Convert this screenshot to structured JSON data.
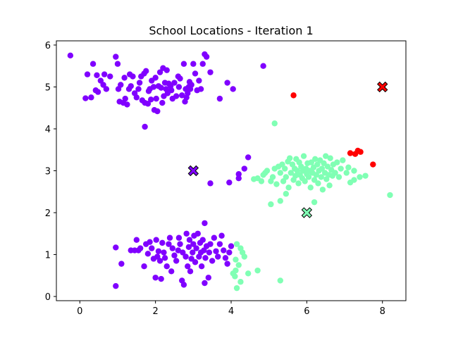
{
  "chart_data": {
    "type": "scatter",
    "title": "School Locations - Iteration 1",
    "xlabel": "",
    "ylabel": "",
    "xlim": [
      -0.62,
      8.62
    ],
    "ylim": [
      -0.1,
      6.1
    ],
    "xticks": [
      0,
      2,
      4,
      6,
      8
    ],
    "yticks": [
      0,
      1,
      2,
      3,
      4,
      5,
      6
    ],
    "grid": false,
    "legend": "none",
    "colors": {
      "purple": "#8000ff",
      "green": "#80ffb4",
      "red": "#ff0000",
      "edge": "#000000",
      "frame": "#000000"
    },
    "series": [
      {
        "color": "purple",
        "points": [
          [
            -0.25,
            5.75
          ],
          [
            0.15,
            4.73
          ],
          [
            0.3,
            4.75
          ],
          [
            0.42,
            4.92
          ],
          [
            0.48,
            4.88
          ],
          [
            0.55,
            5.15
          ],
          [
            0.62,
            5.05
          ],
          [
            0.7,
            4.95
          ],
          [
            0.35,
            5.55
          ],
          [
            0.2,
            5.3
          ],
          [
            0.45,
            5.28
          ],
          [
            0.65,
            5.3
          ],
          [
            0.8,
            5.25
          ],
          [
            0.95,
            5.72
          ],
          [
            1.0,
            5.55
          ],
          [
            1.02,
            4.95
          ],
          [
            1.08,
            5.05
          ],
          [
            1.05,
            4.65
          ],
          [
            1.15,
            4.62
          ],
          [
            1.2,
            4.72
          ],
          [
            1.18,
            5.22
          ],
          [
            1.25,
            4.58
          ],
          [
            1.3,
            4.95
          ],
          [
            1.35,
            5.02
          ],
          [
            1.32,
            5.3
          ],
          [
            1.4,
            5.25
          ],
          [
            1.45,
            4.85
          ],
          [
            1.5,
            4.75
          ],
          [
            1.55,
            4.95
          ],
          [
            1.58,
            5.1
          ],
          [
            1.62,
            5.25
          ],
          [
            1.65,
            4.68
          ],
          [
            1.7,
            5.32
          ],
          [
            1.72,
            4.62
          ],
          [
            1.75,
            5.38
          ],
          [
            1.8,
            4.6
          ],
          [
            1.82,
            4.9
          ],
          [
            1.85,
            4.95
          ],
          [
            1.88,
            4.7
          ],
          [
            1.9,
            5.15
          ],
          [
            1.95,
            5.0
          ],
          [
            1.97,
            4.45
          ],
          [
            2.0,
            5.22
          ],
          [
            2.02,
            4.72
          ],
          [
            2.05,
            4.42
          ],
          [
            2.08,
            5.02
          ],
          [
            2.12,
            5.35
          ],
          [
            2.15,
            4.98
          ],
          [
            2.18,
            4.62
          ],
          [
            2.2,
            5.45
          ],
          [
            2.22,
            4.78
          ],
          [
            2.25,
            5.1
          ],
          [
            2.28,
            4.95
          ],
          [
            2.3,
            5.4
          ],
          [
            2.32,
            4.85
          ],
          [
            2.35,
            5.08
          ],
          [
            2.4,
            5.02
          ],
          [
            2.42,
            4.92
          ],
          [
            2.45,
            4.72
          ],
          [
            2.5,
            5.1
          ],
          [
            2.55,
            4.78
          ],
          [
            2.6,
            5.25
          ],
          [
            2.62,
            5.0
          ],
          [
            2.65,
            5.2
          ],
          [
            2.7,
            4.8
          ],
          [
            2.75,
            5.55
          ],
          [
            2.78,
            4.65
          ],
          [
            2.8,
            4.95
          ],
          [
            2.82,
            4.75
          ],
          [
            2.85,
            4.85
          ],
          [
            2.88,
            5.0
          ],
          [
            2.9,
            5.12
          ],
          [
            2.92,
            4.95
          ],
          [
            2.95,
            5.05
          ],
          [
            3.05,
            5.32
          ],
          [
            3.0,
            5.55
          ],
          [
            3.1,
            4.92
          ],
          [
            3.15,
            5.15
          ],
          [
            3.2,
            4.95
          ],
          [
            3.25,
            5.55
          ],
          [
            3.3,
            5.78
          ],
          [
            3.35,
            5.72
          ],
          [
            3.45,
            5.35
          ],
          [
            3.7,
            4.72
          ],
          [
            3.9,
            5.1
          ],
          [
            4.05,
            4.95
          ],
          [
            4.85,
            5.5
          ],
          [
            1.72,
            4.05
          ],
          [
            4.45,
            3.32
          ],
          [
            4.35,
            3.05
          ],
          [
            4.2,
            2.92
          ],
          [
            4.2,
            2.82
          ],
          [
            3.95,
            2.72
          ],
          [
            3.45,
            2.7
          ],
          [
            0.95,
            1.17
          ],
          [
            1.1,
            0.78
          ],
          [
            1.35,
            1.1
          ],
          [
            1.45,
            1.1
          ],
          [
            1.5,
            1.35
          ],
          [
            1.55,
            1.1
          ],
          [
            1.6,
            1.15
          ],
          [
            1.7,
            0.72
          ],
          [
            1.75,
            1.25
          ],
          [
            1.8,
            1.02
          ],
          [
            1.85,
            1.3
          ],
          [
            1.9,
            1.15
          ],
          [
            1.95,
            0.9
          ],
          [
            2.0,
            0.45
          ],
          [
            2.02,
            1.35
          ],
          [
            2.05,
            0.95
          ],
          [
            2.08,
            1.08
          ],
          [
            2.12,
            0.85
          ],
          [
            2.15,
            0.42
          ],
          [
            2.18,
            1.28
          ],
          [
            2.22,
            1.05
          ],
          [
            2.25,
            0.92
          ],
          [
            2.3,
            0.72
          ],
          [
            2.35,
            1.25
          ],
          [
            2.38,
            1.4
          ],
          [
            2.42,
            0.6
          ],
          [
            2.45,
            1.15
          ],
          [
            2.5,
            0.98
          ],
          [
            2.55,
            0.85
          ],
          [
            2.6,
            1.1
          ],
          [
            2.62,
            1.4
          ],
          [
            2.65,
            1.25
          ],
          [
            2.7,
            0.38
          ],
          [
            2.72,
            1.05
          ],
          [
            2.75,
            0.28
          ],
          [
            2.8,
            0.95
          ],
          [
            2.82,
            1.5
          ],
          [
            2.85,
            0.72
          ],
          [
            2.88,
            1.18
          ],
          [
            2.9,
            1.35
          ],
          [
            2.92,
            0.6
          ],
          [
            2.95,
            0.9
          ],
          [
            2.98,
            1.05
          ],
          [
            3.0,
            1.25
          ],
          [
            3.02,
            1.45
          ],
          [
            3.05,
            0.82
          ],
          [
            3.08,
            1.15
          ],
          [
            3.12,
            1.5
          ],
          [
            3.15,
            0.95
          ],
          [
            3.18,
            1.28
          ],
          [
            3.2,
            1.05
          ],
          [
            3.22,
            0.72
          ],
          [
            3.25,
            1.35
          ],
          [
            3.28,
            1.1
          ],
          [
            3.3,
            1.75
          ],
          [
            3.32,
            0.92
          ],
          [
            3.35,
            1.2
          ],
          [
            3.4,
            0.45
          ],
          [
            3.42,
            1.05
          ],
          [
            3.45,
            1.25
          ],
          [
            3.5,
            0.85
          ],
          [
            3.55,
            1.4
          ],
          [
            3.6,
            1.08
          ],
          [
            3.65,
            0.95
          ],
          [
            3.7,
            1.25
          ],
          [
            3.75,
            1.45
          ],
          [
            3.8,
            1.1
          ],
          [
            3.85,
            0.92
          ],
          [
            3.9,
            0.78
          ],
          [
            3.95,
            1.05
          ],
          [
            4.0,
            1.2
          ],
          [
            3.3,
            0.32
          ],
          [
            0.95,
            0.25
          ]
        ]
      },
      {
        "color": "green",
        "points": [
          [
            4.6,
            2.8
          ],
          [
            4.7,
            2.82
          ],
          [
            4.8,
            2.75
          ],
          [
            4.85,
            2.9
          ],
          [
            4.9,
            2.95
          ],
          [
            4.95,
            3.0
          ],
          [
            5.05,
            2.75
          ],
          [
            5.1,
            2.85
          ],
          [
            5.15,
            3.05
          ],
          [
            5.2,
            2.68
          ],
          [
            5.25,
            3.1
          ],
          [
            5.3,
            2.95
          ],
          [
            5.35,
            3.15
          ],
          [
            5.38,
            2.75
          ],
          [
            5.42,
            3.05
          ],
          [
            5.45,
            2.85
          ],
          [
            5.5,
            3.22
          ],
          [
            5.52,
            2.6
          ],
          [
            5.55,
            3.3
          ],
          [
            5.58,
            2.95
          ],
          [
            5.62,
            3.15
          ],
          [
            5.65,
            2.78
          ],
          [
            5.68,
            3.05
          ],
          [
            5.7,
            2.88
          ],
          [
            5.72,
            3.28
          ],
          [
            5.75,
            3.0
          ],
          [
            5.78,
            2.7
          ],
          [
            5.8,
            3.2
          ],
          [
            5.82,
            2.9
          ],
          [
            5.85,
            3.1
          ],
          [
            5.88,
            2.82
          ],
          [
            5.9,
            3.0
          ],
          [
            5.92,
            3.35
          ],
          [
            5.95,
            2.75
          ],
          [
            5.98,
            3.05
          ],
          [
            6.0,
            2.92
          ],
          [
            6.02,
            3.18
          ],
          [
            6.05,
            2.85
          ],
          [
            6.08,
            3.0
          ],
          [
            6.1,
            2.6
          ],
          [
            6.12,
            3.2
          ],
          [
            6.15,
            2.95
          ],
          [
            6.18,
            3.08
          ],
          [
            6.2,
            2.78
          ],
          [
            6.22,
            3.28
          ],
          [
            6.25,
            2.9
          ],
          [
            6.28,
            3.15
          ],
          [
            6.3,
            2.7
          ],
          [
            6.32,
            3.0
          ],
          [
            6.35,
            3.25
          ],
          [
            6.38,
            2.85
          ],
          [
            6.4,
            3.05
          ],
          [
            6.42,
            2.55
          ],
          [
            6.45,
            3.18
          ],
          [
            6.48,
            2.95
          ],
          [
            6.5,
            3.35
          ],
          [
            6.52,
            2.8
          ],
          [
            6.55,
            3.1
          ],
          [
            6.58,
            2.9
          ],
          [
            6.6,
            2.65
          ],
          [
            6.62,
            3.3
          ],
          [
            6.65,
            3.02
          ],
          [
            6.68,
            2.88
          ],
          [
            6.7,
            3.15
          ],
          [
            6.75,
            2.95
          ],
          [
            6.8,
            3.2
          ],
          [
            6.85,
            2.85
          ],
          [
            6.9,
            3.05
          ],
          [
            6.95,
            3.25
          ],
          [
            7.05,
            2.95
          ],
          [
            7.1,
            3.08
          ],
          [
            7.15,
            2.72
          ],
          [
            7.25,
            2.78
          ],
          [
            7.4,
            2.85
          ],
          [
            7.55,
            2.88
          ],
          [
            7.25,
            3.0
          ],
          [
            8.2,
            2.42
          ],
          [
            6.2,
            2.25
          ],
          [
            5.45,
            2.45
          ],
          [
            5.3,
            2.28
          ],
          [
            5.05,
            2.2
          ],
          [
            5.15,
            4.13
          ],
          [
            4.15,
            1.25
          ],
          [
            4.25,
            1.15
          ],
          [
            4.3,
            1.05
          ],
          [
            4.35,
            0.95
          ],
          [
            4.12,
            0.88
          ],
          [
            4.2,
            0.75
          ],
          [
            4.05,
            0.55
          ],
          [
            4.12,
            0.62
          ],
          [
            4.25,
            0.35
          ],
          [
            4.1,
            0.48
          ],
          [
            4.15,
            0.2
          ],
          [
            4.45,
            0.55
          ],
          [
            4.7,
            0.62
          ],
          [
            5.3,
            0.38
          ]
        ]
      },
      {
        "color": "red",
        "points": [
          [
            5.65,
            4.8
          ],
          [
            7.15,
            3.42
          ],
          [
            7.28,
            3.4
          ],
          [
            7.35,
            3.48
          ],
          [
            7.42,
            3.45
          ],
          [
            7.75,
            3.15
          ]
        ]
      }
    ],
    "centroids": [
      {
        "color": "purple",
        "x": 3,
        "y": 3
      },
      {
        "color": "green",
        "x": 6,
        "y": 2
      },
      {
        "color": "red",
        "x": 8,
        "y": 5
      }
    ]
  }
}
